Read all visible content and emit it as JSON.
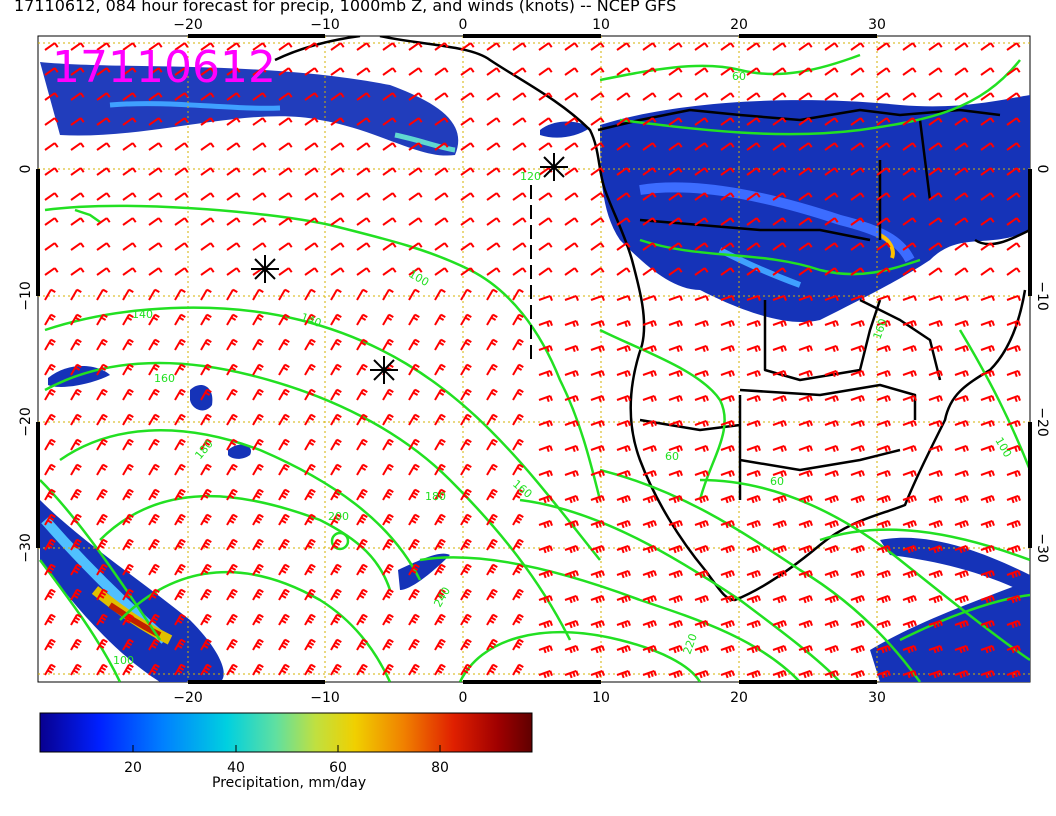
{
  "title": "17110612, 084 hour forecast for precip, 1000mb Z, and winds (knots) -- NCEP GFS",
  "stamp": "17110612",
  "axes": {
    "lon_ticks": [
      "−20",
      "−10",
      "0",
      "10",
      "20",
      "30"
    ],
    "lat_ticks": [
      "0",
      "−10",
      "−20",
      "−30"
    ]
  },
  "contour_labels": [
    "100",
    "120",
    "140",
    "140",
    "160",
    "180",
    "180",
    "200",
    "220",
    "240",
    "160",
    "60",
    "60",
    "160",
    "100",
    "100",
    "60"
  ],
  "colorbar": {
    "label": "Precipitation, mm/day",
    "ticks": [
      "20",
      "40",
      "60",
      "80"
    ],
    "colors": [
      "#08008f",
      "#0020ff",
      "#0080ff",
      "#00d0e0",
      "#60e0a0",
      "#c0e040",
      "#f0d000",
      "#f08000",
      "#e02000",
      "#a00000",
      "#600000"
    ]
  },
  "colors": {
    "contour": "#22e022",
    "wind_barb": "#ff0000",
    "stamp": "#ff00ff",
    "grid": "#d4b000",
    "coast": "#000000"
  }
}
